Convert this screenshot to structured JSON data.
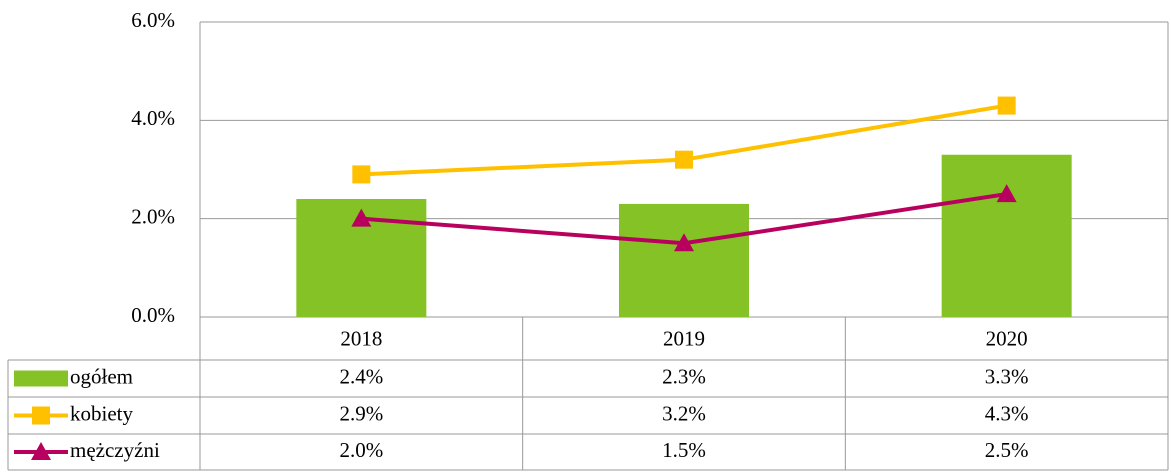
{
  "chart_data": {
    "type": "bar",
    "categories": [
      "2018",
      "2019",
      "2020"
    ],
    "series": [
      {
        "name": "ogółem",
        "type": "bar",
        "color": "#84c225",
        "values": [
          2.4,
          2.3,
          3.3
        ],
        "value_labels": [
          "2.4%",
          "2.3%",
          "3.3%"
        ]
      },
      {
        "name": "kobiety",
        "type": "line",
        "marker": "square",
        "color": "#ffc000",
        "values": [
          2.9,
          3.2,
          4.3
        ],
        "value_labels": [
          "2.9%",
          "3.2%",
          "4.3%"
        ]
      },
      {
        "name": "mężczyźni",
        "type": "line",
        "marker": "triangle",
        "color": "#b8005f",
        "values": [
          2.0,
          1.5,
          2.5
        ],
        "value_labels": [
          "2.0%",
          "1.5%",
          "2.5%"
        ]
      }
    ],
    "ylim": [
      0,
      6
    ],
    "yticks": [
      {
        "value": 0,
        "label": "0.0%"
      },
      {
        "value": 2,
        "label": "2.0%"
      },
      {
        "value": 4,
        "label": "4.0%"
      },
      {
        "value": 6,
        "label": "6.0%"
      }
    ],
    "grid": true
  }
}
